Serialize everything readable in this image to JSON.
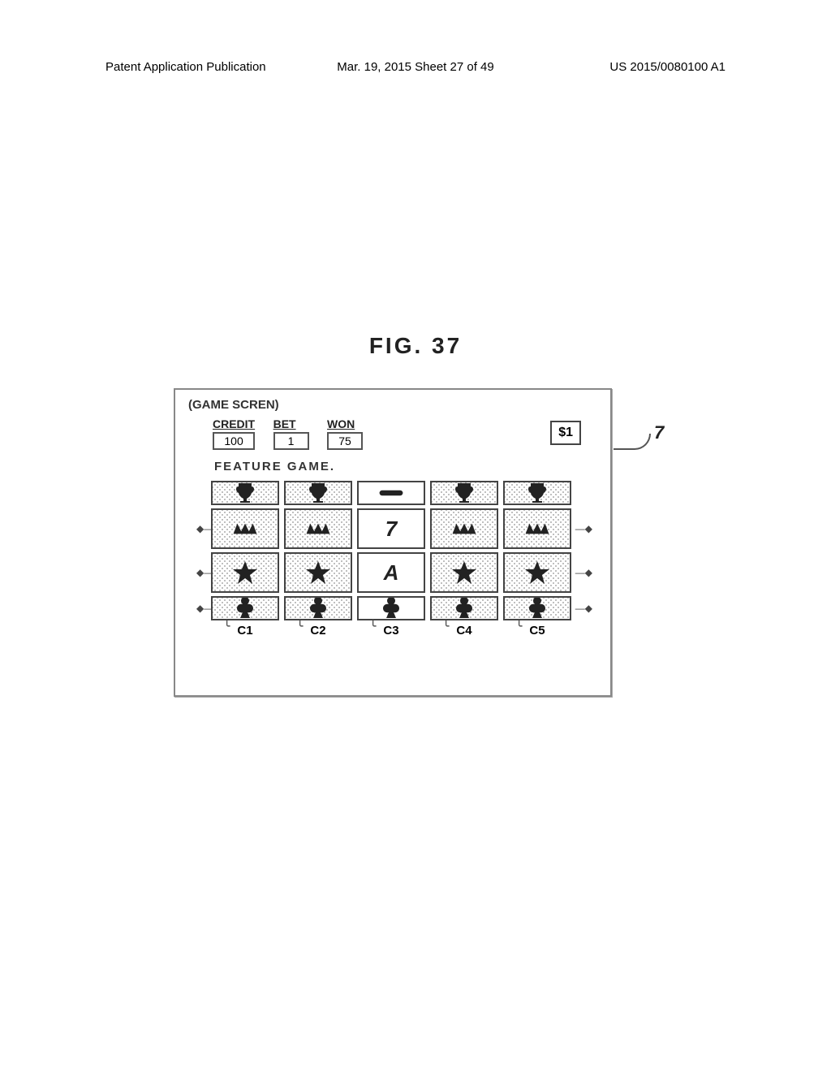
{
  "header": {
    "left": "Patent Application Publication",
    "center": "Mar. 19, 2015  Sheet 27 of 49",
    "right": "US 2015/0080100 A1"
  },
  "figure_label": "FIG. 37",
  "screen": {
    "title": "(GAME SCREN)",
    "credit_label": "CREDIT",
    "credit_value": "100",
    "bet_label": "BET",
    "bet_value": "1",
    "won_label": "WON",
    "won_value": "75",
    "denom": "$1",
    "feature_label": "FEATURE  GAME.",
    "callout_ref": "7",
    "columns": [
      "C1",
      "C2",
      "C3",
      "C4",
      "C5"
    ],
    "rows": [
      {
        "partial": true,
        "cells": [
          {
            "symbol": "trophy",
            "halftone": true
          },
          {
            "symbol": "trophy",
            "halftone": true
          },
          {
            "symbol": "bar",
            "halftone": false
          },
          {
            "symbol": "trophy",
            "halftone": true
          },
          {
            "symbol": "trophy",
            "halftone": true
          }
        ]
      },
      {
        "cells": [
          {
            "symbol": "wild",
            "halftone": true
          },
          {
            "symbol": "wild",
            "halftone": true
          },
          {
            "text": "7",
            "halftone": false
          },
          {
            "symbol": "wild",
            "halftone": true
          },
          {
            "symbol": "wild",
            "halftone": true
          }
        ],
        "winline": true
      },
      {
        "cells": [
          {
            "symbol": "star",
            "halftone": true
          },
          {
            "symbol": "star",
            "halftone": true
          },
          {
            "text": "A",
            "halftone": false
          },
          {
            "symbol": "star",
            "halftone": true
          },
          {
            "symbol": "star",
            "halftone": true
          }
        ],
        "winline": true
      },
      {
        "partial": true,
        "cells": [
          {
            "symbol": "club",
            "halftone": true
          },
          {
            "symbol": "club",
            "halftone": true
          },
          {
            "symbol": "club",
            "halftone": false
          },
          {
            "symbol": "club",
            "halftone": true
          },
          {
            "symbol": "club",
            "halftone": true
          }
        ],
        "winline": true
      }
    ],
    "colors": {
      "frame_border": "#888888",
      "cell_border": "#444444",
      "halftone_dot": "#aaaaaa",
      "text": "#222222",
      "background": "#ffffff"
    },
    "fonts": {
      "label_size_pt": 14,
      "symbol_size_pt": 26,
      "figure_label_size_pt": 28
    }
  }
}
